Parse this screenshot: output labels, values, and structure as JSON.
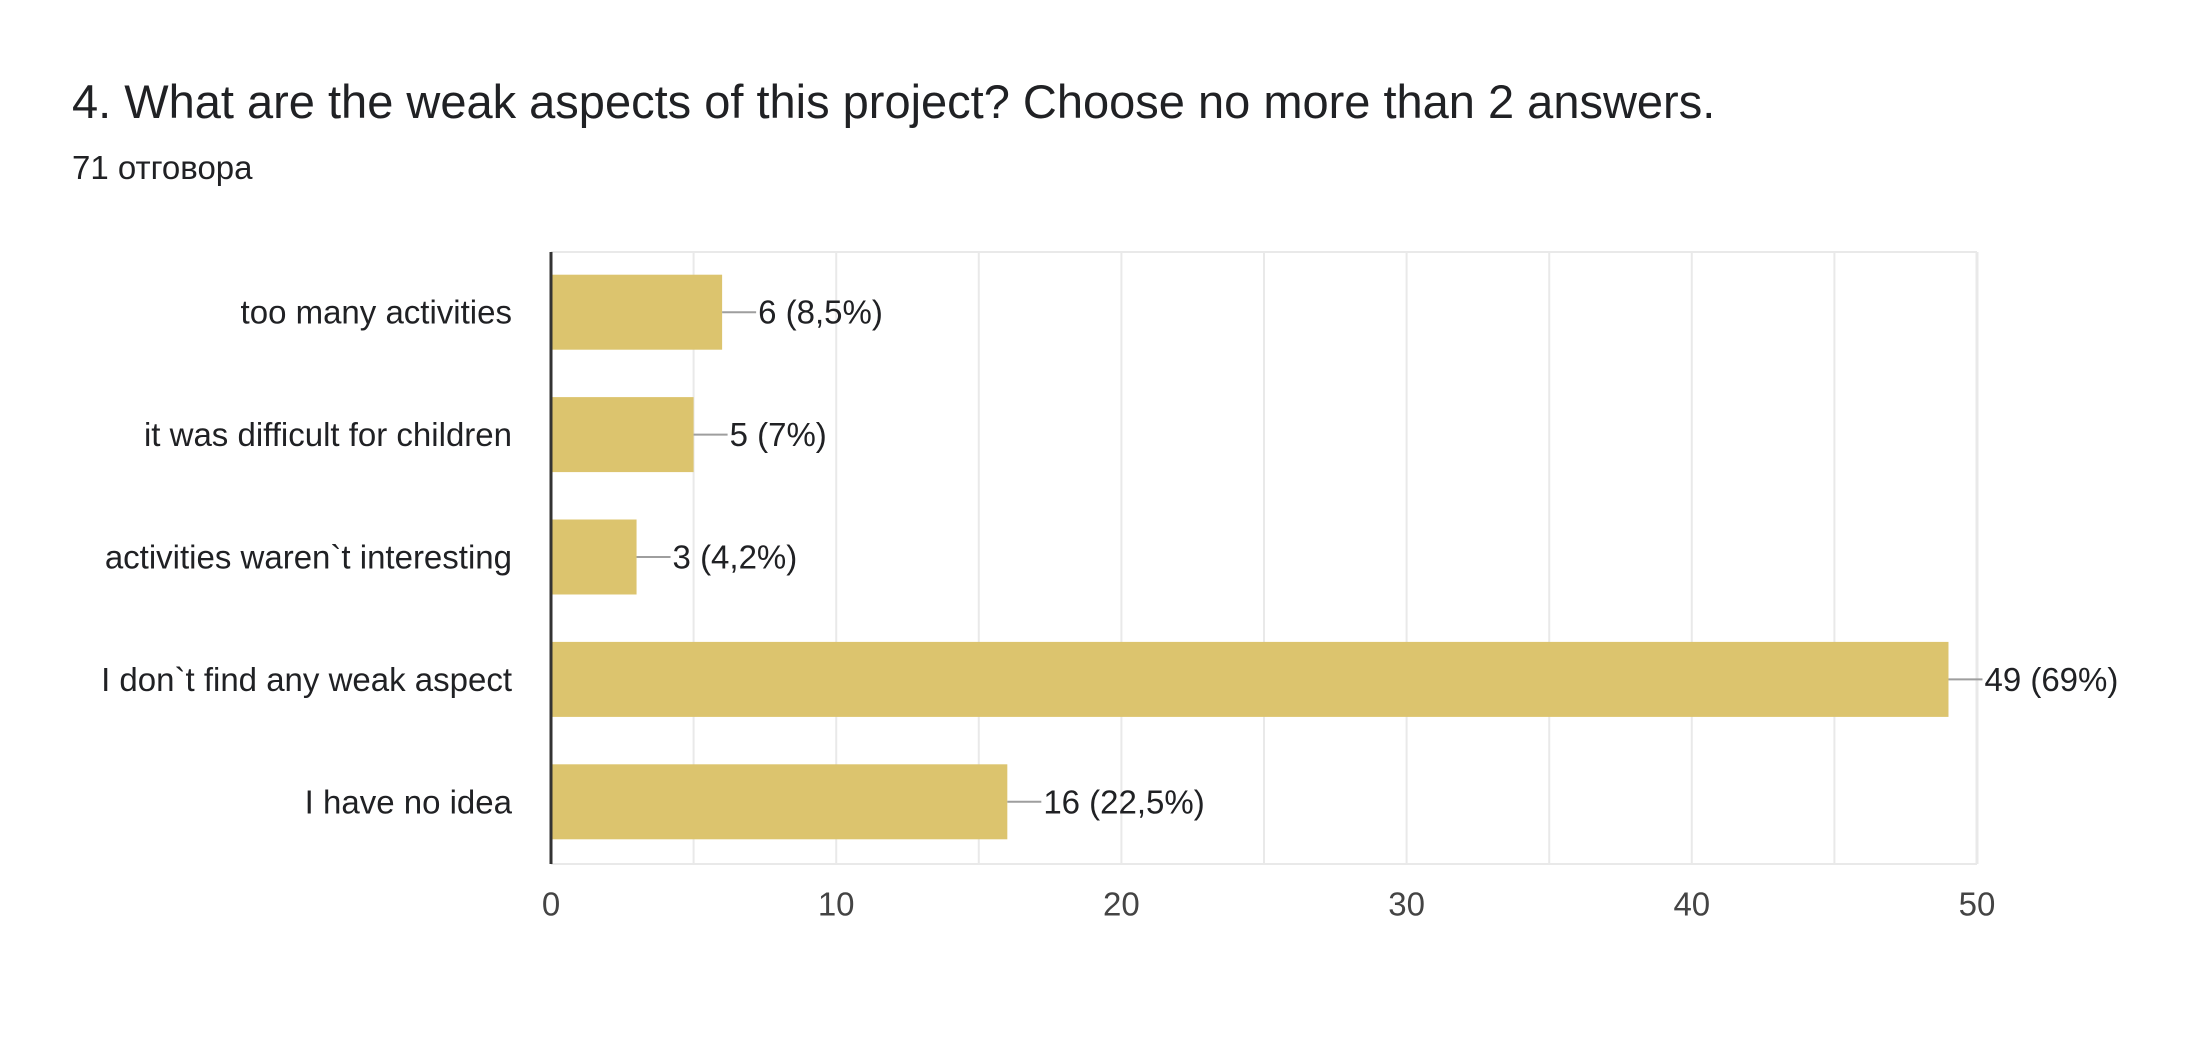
{
  "question": {
    "title": "4. What are the weak aspects of this project? Choose no more than 2 answers.",
    "response_count": "71 отговора"
  },
  "colors": {
    "bar": "#dcc46e",
    "grid": "#e9e9e9",
    "axis": "#333333",
    "leader": "#9e9e9e",
    "text": "#202124",
    "tick_text": "#444444"
  },
  "chart_data": {
    "type": "bar",
    "orientation": "horizontal",
    "categories": [
      "too many activities",
      "it was difficult for children",
      "activities waren`t interesting",
      "I don`t find any weak aspect",
      "I have no idea"
    ],
    "values": [
      6,
      5,
      3,
      49,
      16
    ],
    "data_labels": [
      "6 (8,5%)",
      "5 (7%)",
      "3 (4,2%)",
      "49 (69%)",
      "16 (22,5%)"
    ],
    "xlim": [
      0,
      50
    ],
    "xticks": [
      0,
      10,
      20,
      30,
      40,
      50
    ],
    "xtick_labels": [
      "0",
      "10",
      "20",
      "30",
      "40",
      "50"
    ],
    "minor_grid_step": 5,
    "title": "4. What are the weak aspects of this project? Choose no more than 2 answers.",
    "xlabel": "",
    "ylabel": ""
  }
}
